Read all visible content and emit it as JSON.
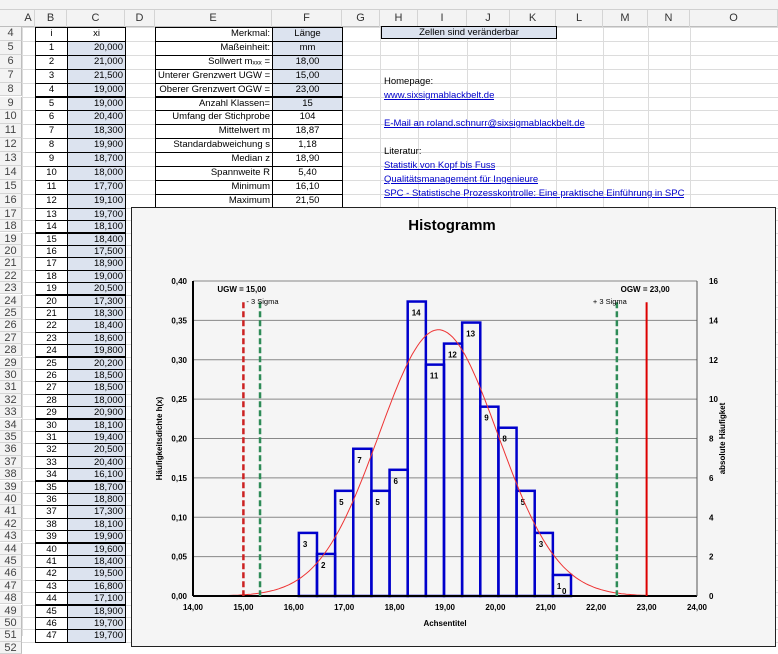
{
  "columns": [
    "A",
    "B",
    "C",
    "D",
    "E",
    "F",
    "G",
    "H",
    "I",
    "J",
    "K",
    "L",
    "M",
    "N",
    "O"
  ],
  "data_table": {
    "header_i": "i",
    "header_xi": "xi",
    "rows": [
      [
        "1",
        "20,000"
      ],
      [
        "2",
        "21,000"
      ],
      [
        "3",
        "21,500"
      ],
      [
        "4",
        "19,000"
      ],
      [
        "5",
        "19,000"
      ],
      [
        "6",
        "20,400"
      ],
      [
        "7",
        "18,300"
      ],
      [
        "8",
        "19,900"
      ],
      [
        "9",
        "18,700"
      ],
      [
        "10",
        "18,000"
      ],
      [
        "11",
        "17,700"
      ],
      [
        "12",
        "19,100"
      ],
      [
        "13",
        "19,700"
      ],
      [
        "14",
        "18,100"
      ],
      [
        "15",
        "18,400"
      ],
      [
        "16",
        "17,500"
      ],
      [
        "17",
        "18,900"
      ],
      [
        "18",
        "19,000"
      ],
      [
        "19",
        "20,500"
      ],
      [
        "20",
        "17,300"
      ],
      [
        "21",
        "18,300"
      ],
      [
        "22",
        "18,400"
      ],
      [
        "23",
        "18,600"
      ],
      [
        "24",
        "19,800"
      ],
      [
        "25",
        "20,200"
      ],
      [
        "26",
        "18,500"
      ],
      [
        "27",
        "18,500"
      ],
      [
        "28",
        "18,000"
      ],
      [
        "29",
        "20,900"
      ],
      [
        "30",
        "18,100"
      ],
      [
        "31",
        "19,400"
      ],
      [
        "32",
        "20,500"
      ],
      [
        "33",
        "20,400"
      ],
      [
        "34",
        "16,100"
      ],
      [
        "35",
        "18,700"
      ],
      [
        "36",
        "18,800"
      ],
      [
        "37",
        "17,300"
      ],
      [
        "38",
        "18,100"
      ],
      [
        "39",
        "19,900"
      ],
      [
        "40",
        "19,600"
      ],
      [
        "41",
        "18,400"
      ],
      [
        "42",
        "19,500"
      ],
      [
        "43",
        "16,800"
      ],
      [
        "44",
        "17,100"
      ],
      [
        "45",
        "18,900"
      ],
      [
        "46",
        "19,700"
      ],
      [
        "47",
        "19,700"
      ]
    ]
  },
  "params": [
    {
      "label": "Merkmal:",
      "value": "Länge",
      "editable": true
    },
    {
      "label": "Maßeinheit:",
      "value": "mm",
      "editable": true
    },
    {
      "label": "Sollwert mₓₓₓ =",
      "value": "18,00",
      "editable": true
    },
    {
      "label": "Unterer Grenzwert UGW =",
      "value": "15,00",
      "editable": true
    },
    {
      "label": "Oberer Grenzwert OGW =",
      "value": "23,00",
      "editable": true
    },
    {
      "label": "Anzahl Klassen=",
      "value": "15",
      "editable": true
    },
    {
      "label": "Umfang der Stichprobe",
      "value": "104",
      "editable": false
    },
    {
      "label": "Mittelwert m",
      "value": "18,87",
      "editable": false
    },
    {
      "label": "Standardabweichung s",
      "value": "1,18",
      "editable": false
    },
    {
      "label": "Median z",
      "value": "18,90",
      "editable": false
    },
    {
      "label": "Spannweite R",
      "value": "5,40",
      "editable": false
    },
    {
      "label": "Minimum",
      "value": "16,10",
      "editable": false
    },
    {
      "label": "Maximum",
      "value": "21,50",
      "editable": false
    }
  ],
  "note": "Zellen sind veränderbar",
  "links": {
    "homepage_label": "Homepage:",
    "homepage": "www.sixsigmablackbelt.de",
    "email": "E-Mail an roland.schnurr@sixsigmablackbelt.de",
    "literature_label": "Literatur:",
    "books": [
      "Statistik von Kopf bis Fuss",
      "Qualitätsmanagement für Ingenieure",
      "SPC - Statistische Prozesskontrolle: Eine praktische Einführung in SPC"
    ]
  },
  "colors": {
    "bars": "#0000cc",
    "curve": "#ee3333",
    "ugw": "#cc2222",
    "ogw": "#dd0000",
    "sigma": "#2e8b57",
    "input_cell": "#dce3ef"
  },
  "chart_data": {
    "type": "bar",
    "title": "Histogramm",
    "xlabel": "Achsentitel",
    "ylabel": "Häufigkeitsdichte h(x)",
    "y2label": "absolute Häufigket",
    "xlim": [
      14,
      24
    ],
    "ylim": [
      0,
      0.4
    ],
    "y2lim": [
      0,
      16
    ],
    "xticks": [
      "14,00",
      "15,00",
      "16,00",
      "17,00",
      "18,00",
      "19,00",
      "20,00",
      "21,00",
      "22,00",
      "23,00",
      "24,00"
    ],
    "yticks": [
      "0,00",
      "0,05",
      "0,10",
      "0,15",
      "0,20",
      "0,25",
      "0,30",
      "0,35",
      "0,40"
    ],
    "y2ticks": [
      "0",
      "2",
      "4",
      "6",
      "8",
      "10",
      "12",
      "14",
      "16"
    ],
    "grid": true,
    "class_start": 16.1,
    "class_width": 0.36,
    "counts": [
      3,
      2,
      5,
      7,
      5,
      6,
      14,
      11,
      12,
      13,
      9,
      8,
      5,
      3,
      1
    ],
    "extra_label": "0",
    "mean": 18.87,
    "sd": 1.18,
    "n": 104,
    "lines": [
      {
        "label": "UGW = 15,00",
        "x": 15.0
      },
      {
        "label": "- 3 Sigma",
        "x": 15.33
      },
      {
        "label": "+ 3 Sigma",
        "x": 22.41
      },
      {
        "label": "OGW = 23,00",
        "x": 23.0
      }
    ]
  }
}
